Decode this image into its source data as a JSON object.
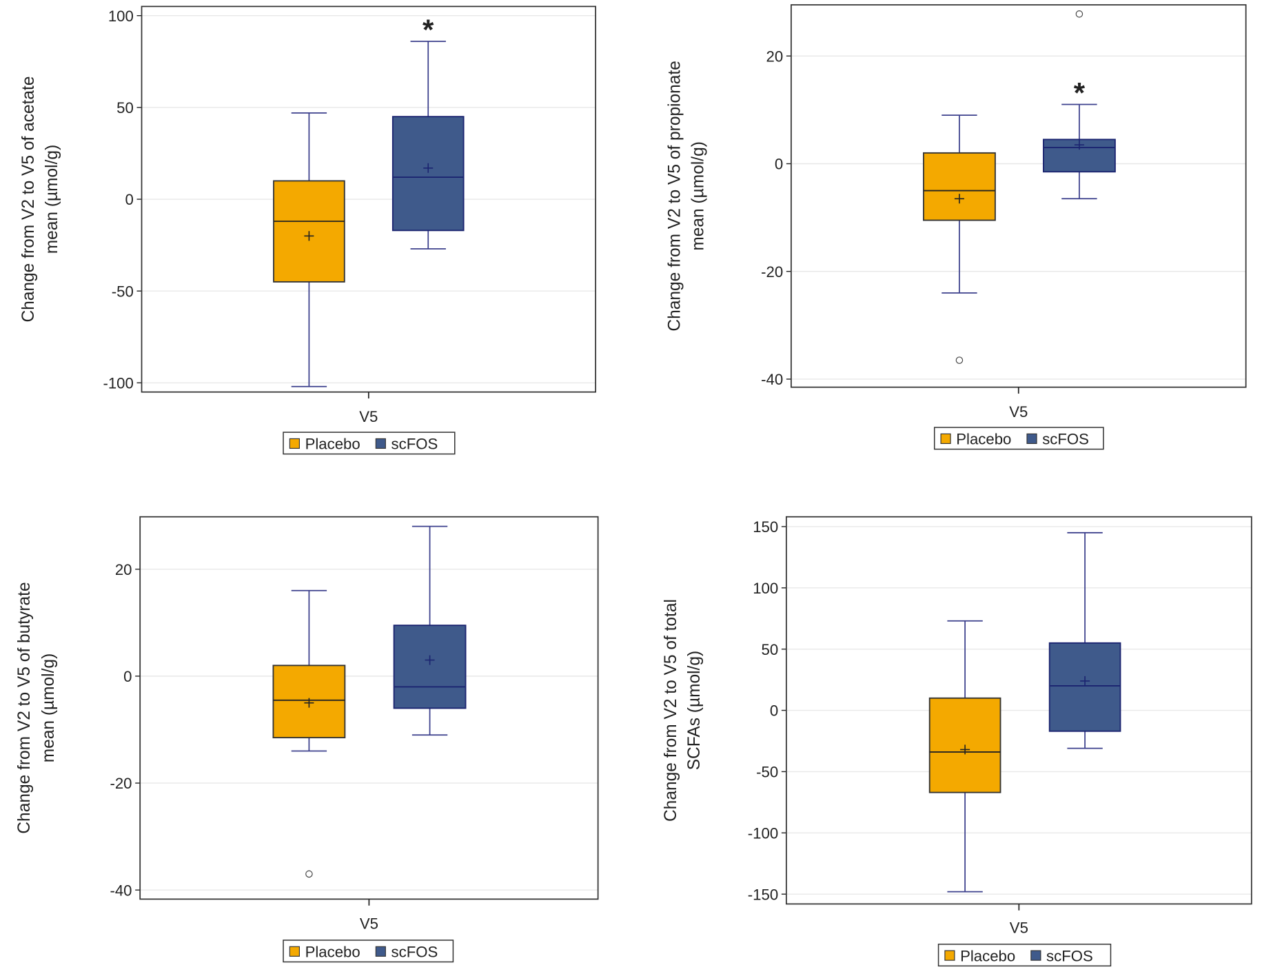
{
  "colors": {
    "placebo": "#F4A900",
    "scfos": "#3F5A8B",
    "box_edge": "#1B2470",
    "whisker": "#3B3F8C",
    "grid": "#E8E8E8"
  },
  "chart_data": [
    {
      "type": "box",
      "ylabel": [
        "Change from V2 to V5 of acetate",
        "mean (µmol/g)"
      ],
      "category": "V5",
      "ylim": [
        -105,
        105
      ],
      "yticks": [
        100,
        50,
        0,
        -50,
        -100
      ],
      "legend": [
        "Placebo",
        "scFOS"
      ],
      "legend_position": "bottom",
      "significance_marker": "*",
      "marker_on": "scFOS",
      "series": [
        {
          "name": "Placebo",
          "min": -102,
          "q1": -45,
          "median": -12,
          "mean": -20,
          "q3": 10,
          "max": 47,
          "outliers": []
        },
        {
          "name": "scFOS",
          "min": -27,
          "q1": -17,
          "median": 12,
          "mean": 17,
          "q3": 45,
          "max": 86,
          "outliers": []
        }
      ]
    },
    {
      "type": "box",
      "ylabel": [
        "Change from V2 to V5 of propionate",
        "mean (µmol/g)"
      ],
      "category": "V5",
      "ylim": [
        -41.5,
        29.5
      ],
      "yticks": [
        20,
        0,
        -20,
        -40
      ],
      "legend": [
        "Placebo",
        "scFOS"
      ],
      "legend_position": "bottom",
      "significance_marker": "*",
      "marker_on": "scFOS",
      "series": [
        {
          "name": "Placebo",
          "min": -24,
          "q1": -10.5,
          "median": -5,
          "mean": -6.5,
          "q3": 2,
          "max": 9,
          "outliers": [
            -36.5
          ]
        },
        {
          "name": "scFOS",
          "min": -6.5,
          "q1": -1.5,
          "median": 3,
          "mean": 3.5,
          "q3": 4.5,
          "max": 11,
          "outliers": [
            27.8
          ]
        }
      ]
    },
    {
      "type": "box",
      "ylabel": [
        "Change from V2 to V5 of butyrate",
        "mean (µmol/g)"
      ],
      "category": "V5",
      "ylim": [
        -41.7,
        29.8
      ],
      "yticks": [
        20,
        0,
        -20,
        -40
      ],
      "legend": [
        "Placebo",
        "scFOS"
      ],
      "legend_position": "bottom",
      "significance_marker": "",
      "marker_on": "",
      "series": [
        {
          "name": "Placebo",
          "min": -14,
          "q1": -11.5,
          "median": -4.5,
          "mean": -5,
          "q3": 2,
          "max": 16,
          "outliers": [
            -37
          ]
        },
        {
          "name": "scFOS",
          "min": -11,
          "q1": -6,
          "median": -2,
          "mean": 3,
          "q3": 9.5,
          "max": 28,
          "outliers": []
        }
      ]
    },
    {
      "type": "box",
      "ylabel": [
        "Change from V2 to V5 of total",
        "SCFAs (µmol/g)"
      ],
      "category": "V5",
      "ylim": [
        -158,
        158
      ],
      "yticks": [
        150,
        100,
        50,
        0,
        -50,
        -100,
        -150
      ],
      "legend": [
        "Placebo",
        "scFOS"
      ],
      "legend_position": "bottom",
      "significance_marker": "",
      "marker_on": "",
      "series": [
        {
          "name": "Placebo",
          "min": -148,
          "q1": -67,
          "median": -34,
          "mean": -32,
          "q3": 10,
          "max": 73,
          "outliers": []
        },
        {
          "name": "scFOS",
          "min": -31,
          "q1": -17,
          "median": 20,
          "mean": 24,
          "q3": 55,
          "max": 145,
          "outliers": []
        }
      ]
    }
  ]
}
